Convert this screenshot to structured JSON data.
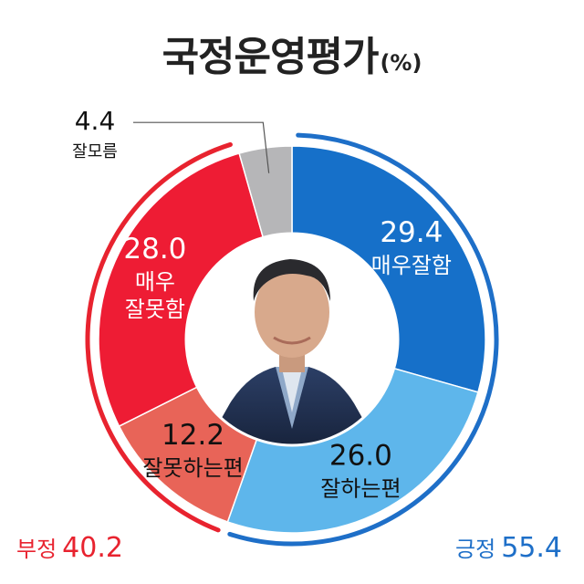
{
  "title": {
    "main": "국정운영평가",
    "unit": "(%)"
  },
  "chart_data": {
    "type": "pie",
    "title": "국정운영평가",
    "unit": "%",
    "start_angle": "top",
    "direction": "clockwise",
    "center": "portrait photo",
    "slices": [
      {
        "label": "매우잘함",
        "value": 29.4,
        "value_text": "29.4",
        "label_lines": [
          "매우잘함"
        ],
        "color": "#1670c9",
        "text_color": "#ffffff"
      },
      {
        "label": "잘하는편",
        "value": 26.0,
        "value_text": "26.0",
        "label_lines": [
          "잘하는편"
        ],
        "color": "#5eb6eb",
        "text_color": "#111111"
      },
      {
        "label": "잘못하는편",
        "value": 12.2,
        "value_text": "12.2",
        "label_lines": [
          "잘못하는편"
        ],
        "color": "#e86458",
        "text_color": "#111111"
      },
      {
        "label": "매우 잘못함",
        "value": 28.0,
        "value_text": "28.0",
        "label_lines": [
          "매우",
          "잘못함"
        ],
        "color": "#ee1c34",
        "text_color": "#ffffff"
      },
      {
        "label": "잘모름",
        "value": 4.4,
        "value_text": "4.4",
        "label_lines": [
          "잘모름"
        ],
        "color": "#b6b6b8",
        "text_color": "#111111"
      }
    ],
    "totals": [
      {
        "label": "부정",
        "value": 40.2,
        "value_text": "40.2",
        "color": "#e8232f",
        "slices": [
          "잘못하는편",
          "매우 잘못함"
        ]
      },
      {
        "label": "긍정",
        "value": 55.4,
        "value_text": "55.4",
        "color": "#1e6fc8",
        "slices": [
          "매우잘함",
          "잘하는편"
        ]
      }
    ]
  }
}
